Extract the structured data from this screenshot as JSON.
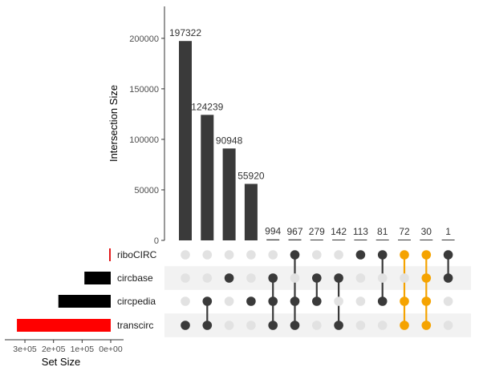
{
  "chart_data": {
    "type": "bar",
    "ylabel": "Intersection Size",
    "set_size_label": "Set Size",
    "ylim": [
      0,
      230000
    ],
    "y_ticks": [
      "0",
      "50000",
      "100000",
      "150000",
      "200000"
    ],
    "y_tick_values": [
      0,
      50000,
      100000,
      150000,
      200000
    ],
    "sets": [
      {
        "name": "riboCIRC",
        "size": 5000,
        "color": "#e31a1c"
      },
      {
        "name": "circbase",
        "size": 92000,
        "color": "#000000"
      },
      {
        "name": "circpedia",
        "size": 183000,
        "color": "#000000"
      },
      {
        "name": "transcirc",
        "size": 328000,
        "color": "#ff0000"
      }
    ],
    "set_size_ticks": [
      "3e+05",
      "2e+05",
      "1e+05",
      "0e+00"
    ],
    "set_size_tick_values": [
      300000,
      200000,
      100000,
      0
    ],
    "set_size_max": 345000,
    "intersections": [
      {
        "label": "197322",
        "value": 197322,
        "members": [
          "transcirc"
        ],
        "highlight": false
      },
      {
        "label": "124239",
        "value": 124239,
        "members": [
          "circpedia",
          "transcirc"
        ],
        "highlight": false
      },
      {
        "label": "90948",
        "value": 90948,
        "members": [
          "circbase"
        ],
        "highlight": false
      },
      {
        "label": "55920",
        "value": 55920,
        "members": [
          "circpedia"
        ],
        "highlight": false
      },
      {
        "label": "994",
        "value": 994,
        "members": [
          "circbase",
          "circpedia",
          "transcirc"
        ],
        "highlight": false
      },
      {
        "label": "967",
        "value": 967,
        "members": [
          "riboCIRC",
          "circpedia",
          "transcirc"
        ],
        "highlight": false
      },
      {
        "label": "279",
        "value": 279,
        "members": [
          "circbase",
          "circpedia"
        ],
        "highlight": false
      },
      {
        "label": "142",
        "value": 142,
        "members": [
          "circbase",
          "transcirc"
        ],
        "highlight": false
      },
      {
        "label": "113",
        "value": 113,
        "members": [
          "riboCIRC"
        ],
        "highlight": false
      },
      {
        "label": "81",
        "value": 81,
        "members": [
          "riboCIRC",
          "circpedia"
        ],
        "highlight": false
      },
      {
        "label": "72",
        "value": 72,
        "members": [
          "riboCIRC",
          "circpedia",
          "transcirc"
        ],
        "highlight": true
      },
      {
        "label": "30",
        "value": 30,
        "members": [
          "riboCIRC",
          "circbase",
          "circpedia",
          "transcirc"
        ],
        "highlight": true
      },
      {
        "label": "1",
        "value": 1,
        "members": [
          "riboCIRC",
          "circbase"
        ],
        "highlight": false
      }
    ],
    "colors": {
      "bar": "#3a3a3a",
      "dot": "#3a3a3a",
      "highlight": "#f5a300",
      "inactive_dot": "#e2e2e2",
      "band": "#f2f2f2"
    }
  }
}
